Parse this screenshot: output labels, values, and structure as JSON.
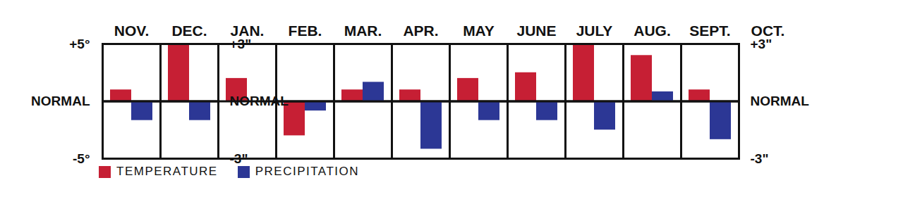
{
  "chart_data": {
    "type": "bar",
    "categories": [
      "NOV.",
      "DEC.",
      "JAN.",
      "FEB.",
      "MAR.",
      "APR.",
      "MAY",
      "JUNE",
      "JULY",
      "AUG.",
      "SEPT.",
      "OCT."
    ],
    "series": [
      {
        "name": "TEMPERATURE",
        "color": "#c61f34",
        "values": [
          1,
          5,
          2,
          -3,
          1,
          1,
          2,
          2.5,
          5,
          4,
          1,
          null
        ]
      },
      {
        "name": "PRECIPITATION",
        "color": "#2c3795",
        "axis": "y2",
        "values": [
          -1,
          -1,
          null,
          -0.5,
          1,
          -2.5,
          -1,
          -1,
          -1.5,
          0.5,
          -2,
          null
        ]
      }
    ],
    "ylim": [
      -5,
      5
    ],
    "yticks": [
      {
        "value": 5,
        "label": "+5°"
      },
      {
        "value": 0,
        "label": "NORMAL"
      },
      {
        "value": -5,
        "label": "-5°"
      }
    ],
    "y2lim": [
      -3,
      3
    ],
    "y2ticks": [
      {
        "value": 3,
        "label": "+3\""
      },
      {
        "value": 0,
        "label": "NORMAL"
      },
      {
        "value": -3,
        "label": "-3\""
      }
    ],
    "legend": "bottom"
  }
}
